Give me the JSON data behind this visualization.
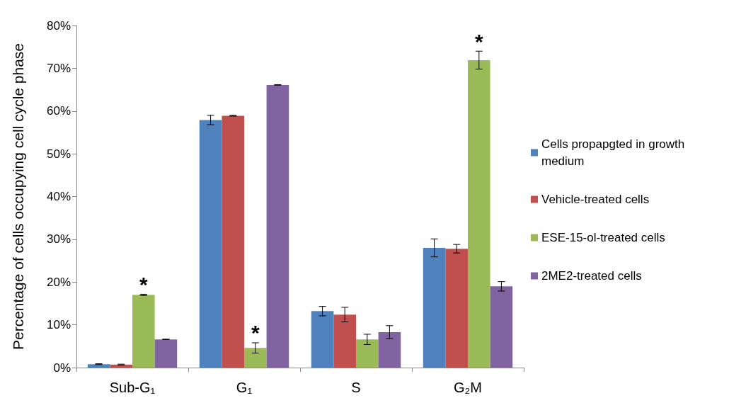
{
  "chart_data": {
    "type": "bar",
    "ylabel": "Percentage of cells occupying cell cycle phase",
    "categories": [
      "Sub-G₁",
      "G₁",
      "S",
      "G₂M"
    ],
    "series": [
      {
        "name": "Cells propapgted in growth medium",
        "color": "#4f81bd",
        "values": [
          0.8,
          57.9,
          13.2,
          28.0
        ],
        "errors": [
          0.1,
          1.1,
          1.1,
          2.1
        ]
      },
      {
        "name": "Vehicle-treated cells",
        "color": "#c0504d",
        "values": [
          0.7,
          58.9,
          12.4,
          27.8
        ],
        "errors": [
          0.1,
          0.1,
          1.7,
          1.0
        ]
      },
      {
        "name": "ESE-15-ol-treated cells",
        "color": "#9bbb59",
        "values": [
          17.0,
          4.6,
          6.6,
          71.9
        ],
        "errors": [
          0.15,
          1.2,
          1.2,
          2.1
        ]
      },
      {
        "name": "2ME2-treated cells",
        "color": "#8064a2",
        "values": [
          6.6,
          66.1,
          8.3,
          19.0
        ],
        "errors": [
          0.05,
          0.05,
          1.5,
          1.1
        ]
      }
    ],
    "ylim": [
      0,
      80
    ],
    "yticks": [
      {
        "value": 0,
        "label": "0%"
      },
      {
        "value": 10,
        "label": "10%"
      },
      {
        "value": 20,
        "label": "20%"
      },
      {
        "value": 30,
        "label": "30%"
      },
      {
        "value": 40,
        "label": "40%"
      },
      {
        "value": 50,
        "label": "50%"
      },
      {
        "value": 60,
        "label": "60%"
      },
      {
        "value": 70,
        "label": "70%"
      },
      {
        "value": 80,
        "label": "80%"
      }
    ],
    "annotations": [
      {
        "text": "*",
        "x": "Sub-G₁",
        "y": 17.0
      },
      {
        "text": "*",
        "x": "G₁",
        "y": 4.6
      },
      {
        "text": "*",
        "x": "G₂M",
        "y": 71.9
      }
    ],
    "grid": false,
    "legend": "right"
  }
}
